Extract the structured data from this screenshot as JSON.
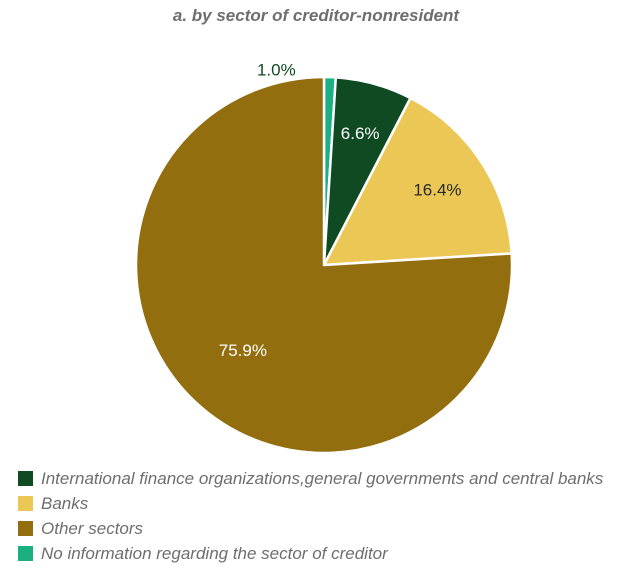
{
  "chart_data": {
    "type": "pie",
    "title": "a. by sector of creditor-nonresident",
    "slices": [
      {
        "label": "No information regarding the sector of creditor",
        "value": 1.0,
        "display": "1.0%",
        "color": "#1ab082"
      },
      {
        "label": "International finance organizations,general governments and central banks",
        "value": 6.6,
        "display": "6.6%",
        "color": "#0f4a22"
      },
      {
        "label": "Banks",
        "value": 16.4,
        "display": "16.4%",
        "color": "#ebc755"
      },
      {
        "label": "Other sectors",
        "value": 75.9,
        "display": "75.9%",
        "color": "#936e0e"
      }
    ],
    "legend": [
      {
        "label": "International finance organizations,general governments and central banks",
        "color": "#0f4a22"
      },
      {
        "label": "Banks",
        "color": "#ebc755"
      },
      {
        "label": "Other sectors",
        "color": "#936e0e"
      },
      {
        "label": "No information regarding the sector of creditor",
        "color": "#1ab082"
      }
    ],
    "legend_position": "bottom-left"
  }
}
